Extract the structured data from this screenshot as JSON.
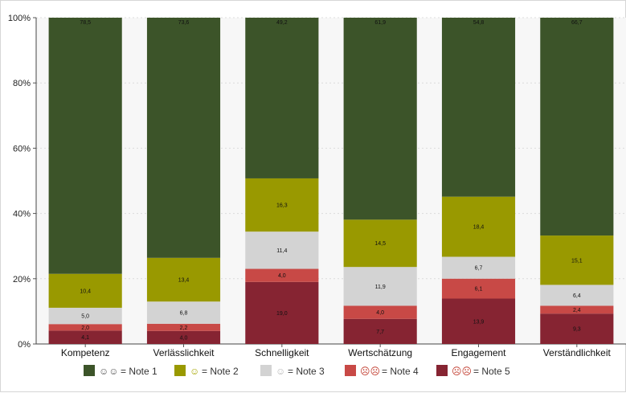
{
  "chart_data": {
    "type": "bar",
    "stacked": true,
    "percent": true,
    "categories": [
      "Kompetenz",
      "Verlässlichkeit",
      "Schnelligkeit",
      "Wertschätzung",
      "Engagement",
      "Verständlichkeit"
    ],
    "series": [
      {
        "name": "Note 5",
        "legend_symbol": "☹☹",
        "color": "#862432",
        "values": [
          4.1,
          4.0,
          19.0,
          7.7,
          13.9,
          9.3
        ],
        "labels": [
          "4,1",
          "4,0",
          "19,0",
          "7,7",
          "13,9",
          "9,3"
        ]
      },
      {
        "name": "Note 4",
        "legend_symbol": "☹☹",
        "color": "#c84946",
        "values": [
          2.0,
          2.2,
          4.0,
          4.0,
          6.1,
          2.4
        ],
        "labels": [
          "2,0",
          "2,2",
          "4,0",
          "4,0",
          "6,1",
          "2,4"
        ]
      },
      {
        "name": "Note 3",
        "legend_symbol": "☺",
        "color": "#d3d3d3",
        "values": [
          5.0,
          6.8,
          11.4,
          11.9,
          6.7,
          6.4
        ],
        "labels": [
          "5,0",
          "6,8",
          "11,4",
          "11,9",
          "6,7",
          "6,4"
        ]
      },
      {
        "name": "Note 2",
        "legend_symbol": "☺",
        "color": "#999900",
        "values": [
          10.4,
          13.4,
          16.3,
          14.5,
          18.4,
          15.1
        ],
        "labels": [
          "10,4",
          "13,4",
          "16,3",
          "14,5",
          "18,4",
          "15,1"
        ]
      },
      {
        "name": "Note 1",
        "legend_symbol": "☺☺",
        "color": "#3c5429",
        "values": [
          78.5,
          73.6,
          49.2,
          61.9,
          54.8,
          66.7
        ],
        "labels": [
          "78,5",
          "73,6",
          "49,2",
          "61,9",
          "54,8",
          "66,7"
        ]
      }
    ],
    "legend_order": [
      "Note 1",
      "Note 2",
      "Note 3",
      "Note 4",
      "Note 5"
    ],
    "legend_position": "bottom",
    "y_ticks": [
      "0%",
      "20%",
      "40%",
      "60%",
      "80%",
      "100%"
    ],
    "ylim": [
      0,
      100
    ],
    "grid": true,
    "plot_background": "#f7f7f7"
  }
}
